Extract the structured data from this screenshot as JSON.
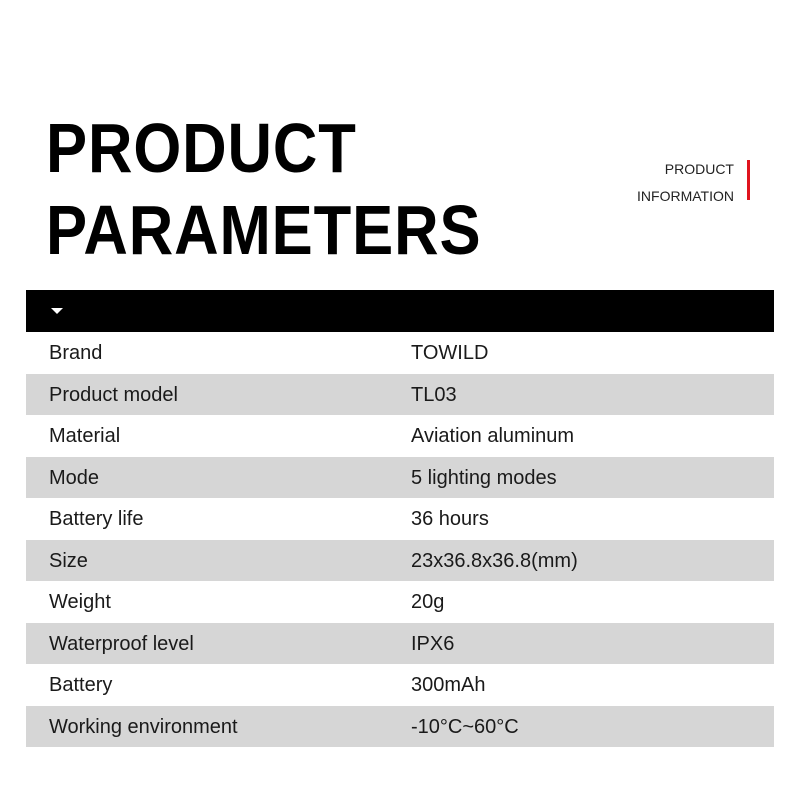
{
  "title": {
    "line1": "PRODUCT",
    "line2": "PARAMETERS"
  },
  "side_label": {
    "line1": "PRODUCT",
    "line2": "INFORMATION",
    "accent_color": "#e0141e"
  },
  "header_bar": {
    "icon": "triangle-down-icon"
  },
  "rows": [
    {
      "label": "Brand",
      "value": "TOWILD"
    },
    {
      "label": "Product model",
      "value": "TL03"
    },
    {
      "label": "Material",
      "value": "Aviation aluminum"
    },
    {
      "label": "Mode",
      "value": "5 lighting modes"
    },
    {
      "label": "Battery life",
      "value": "36 hours"
    },
    {
      "label": "Size",
      "value": "23x36.8x36.8(mm)"
    },
    {
      "label": "Weight",
      "value": "20g"
    },
    {
      "label": "Waterproof level",
      "value": "IPX6"
    },
    {
      "label": "Battery",
      "value": "300mAh"
    },
    {
      "label": "Working environment",
      "value": "-10°C~60°C"
    }
  ]
}
